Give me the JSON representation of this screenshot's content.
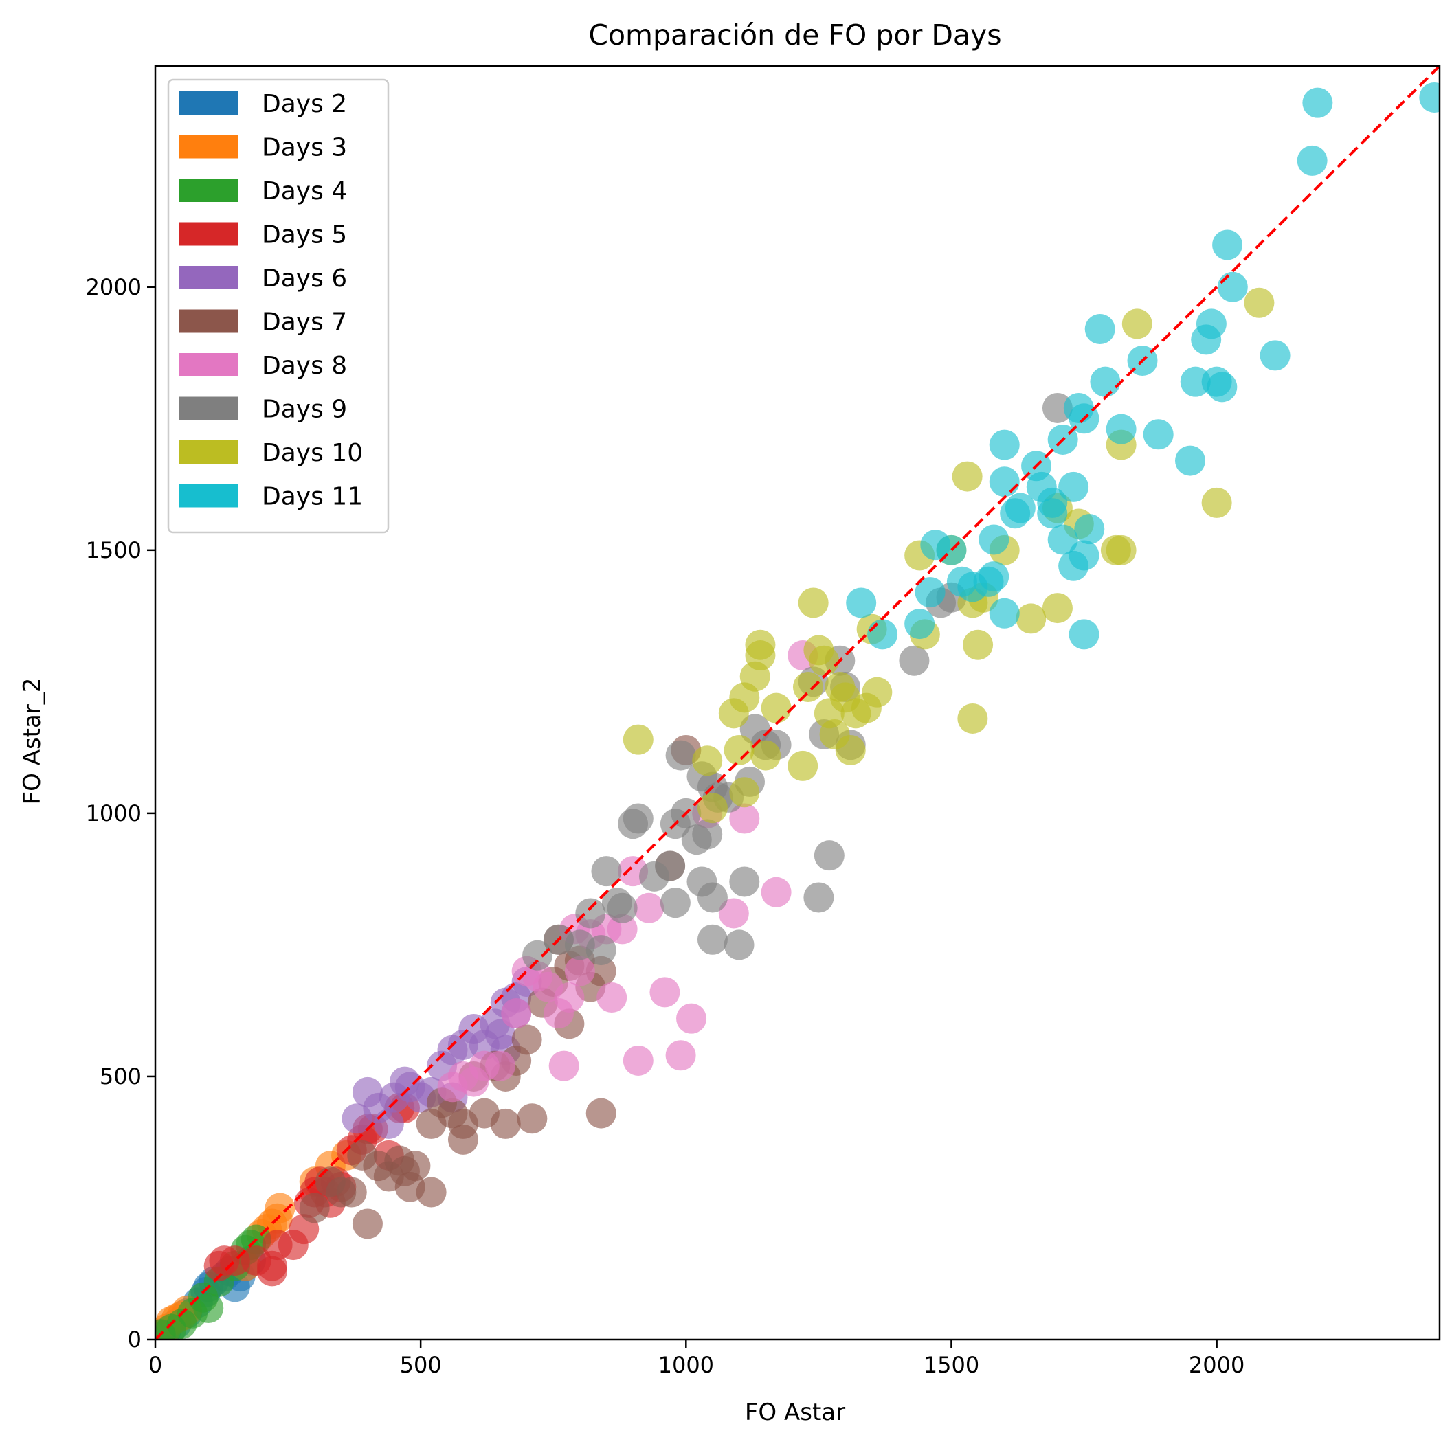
{
  "chart_data": {
    "type": "scatter",
    "title": "Comparación de FO por Days",
    "xlabel": "FO Astar",
    "ylabel": "FO Astar_2",
    "xlim": [
      0,
      2420
    ],
    "ylim": [
      0,
      2420
    ],
    "xticks": [
      0,
      500,
      1000,
      1500,
      2000
    ],
    "yticks": [
      0,
      500,
      1000,
      1500,
      2000
    ],
    "grid": false,
    "legend_position": "top-left",
    "reference_line": {
      "style": "dashed",
      "color": "#ff0000",
      "from": [
        0,
        0
      ],
      "to": [
        2420,
        2420
      ]
    },
    "series": [
      {
        "name": "Days 2",
        "color": "#1f77b4",
        "points": [
          [
            10,
            10
          ],
          [
            20,
            15
          ],
          [
            40,
            30
          ],
          [
            60,
            50
          ],
          [
            80,
            70
          ],
          [
            95,
            90
          ],
          [
            100,
            100
          ],
          [
            110,
            110
          ],
          [
            130,
            120
          ],
          [
            150,
            100
          ],
          [
            160,
            120
          ],
          [
            170,
            140
          ],
          [
            180,
            150
          ],
          [
            140,
            130
          ]
        ]
      },
      {
        "name": "Days 3",
        "color": "#ff7f0e",
        "points": [
          [
            20,
            20
          ],
          [
            30,
            35
          ],
          [
            40,
            40
          ],
          [
            50,
            45
          ],
          [
            60,
            55
          ],
          [
            170,
            140
          ],
          [
            200,
            200
          ],
          [
            210,
            210
          ],
          [
            220,
            220
          ],
          [
            230,
            230
          ],
          [
            235,
            250
          ],
          [
            300,
            300
          ],
          [
            330,
            330
          ],
          [
            360,
            350
          ]
        ]
      },
      {
        "name": "Days 4",
        "color": "#2ca02c",
        "points": [
          [
            10,
            10
          ],
          [
            30,
            20
          ],
          [
            50,
            30
          ],
          [
            70,
            50
          ],
          [
            90,
            80
          ],
          [
            100,
            60
          ],
          [
            120,
            110
          ],
          [
            150,
            140
          ],
          [
            170,
            170
          ],
          [
            180,
            180
          ],
          [
            190,
            190
          ]
        ]
      },
      {
        "name": "Days 5",
        "color": "#d62728",
        "points": [
          [
            120,
            140
          ],
          [
            130,
            150
          ],
          [
            150,
            150
          ],
          [
            190,
            150
          ],
          [
            220,
            130
          ],
          [
            220,
            140
          ],
          [
            230,
            180
          ],
          [
            260,
            180
          ],
          [
            280,
            210
          ],
          [
            290,
            260
          ],
          [
            300,
            280
          ],
          [
            310,
            300
          ],
          [
            320,
            280
          ],
          [
            330,
            260
          ],
          [
            340,
            300
          ],
          [
            350,
            290
          ],
          [
            370,
            360
          ],
          [
            390,
            380
          ],
          [
            400,
            400
          ],
          [
            440,
            350
          ],
          [
            460,
            440
          ],
          [
            470,
            440
          ],
          [
            410,
            400
          ]
        ]
      },
      {
        "name": "Days 6",
        "color": "#9467bd",
        "points": [
          [
            380,
            420
          ],
          [
            400,
            470
          ],
          [
            420,
            440
          ],
          [
            440,
            410
          ],
          [
            450,
            460
          ],
          [
            470,
            490
          ],
          [
            480,
            480
          ],
          [
            500,
            460
          ],
          [
            520,
            470
          ],
          [
            540,
            520
          ],
          [
            560,
            460
          ],
          [
            560,
            550
          ],
          [
            580,
            560
          ],
          [
            600,
            590
          ],
          [
            620,
            560
          ],
          [
            640,
            600
          ],
          [
            650,
            580
          ],
          [
            660,
            640
          ],
          [
            680,
            650
          ],
          [
            700,
            680
          ],
          [
            680,
            620
          ],
          [
            660,
            550
          ]
        ]
      },
      {
        "name": "Days 7",
        "color": "#8c564b",
        "points": [
          [
            300,
            250
          ],
          [
            330,
            300
          ],
          [
            350,
            280
          ],
          [
            370,
            280
          ],
          [
            390,
            350
          ],
          [
            400,
            220
          ],
          [
            420,
            330
          ],
          [
            440,
            310
          ],
          [
            460,
            340
          ],
          [
            470,
            320
          ],
          [
            480,
            290
          ],
          [
            490,
            330
          ],
          [
            520,
            410
          ],
          [
            520,
            280
          ],
          [
            540,
            450
          ],
          [
            560,
            430
          ],
          [
            580,
            410
          ],
          [
            580,
            380
          ],
          [
            600,
            500
          ],
          [
            620,
            430
          ],
          [
            640,
            520
          ],
          [
            660,
            410
          ],
          [
            660,
            500
          ],
          [
            680,
            530
          ],
          [
            700,
            570
          ],
          [
            710,
            420
          ],
          [
            730,
            640
          ],
          [
            750,
            680
          ],
          [
            760,
            760
          ],
          [
            780,
            710
          ],
          [
            780,
            600
          ],
          [
            800,
            720
          ],
          [
            820,
            670
          ],
          [
            840,
            430
          ],
          [
            840,
            700
          ],
          [
            970,
            900
          ],
          [
            1000,
            1120
          ]
        ]
      },
      {
        "name": "Days 8",
        "color": "#e377c2",
        "points": [
          [
            560,
            480
          ],
          [
            580,
            500
          ],
          [
            600,
            490
          ],
          [
            620,
            520
          ],
          [
            650,
            520
          ],
          [
            680,
            620
          ],
          [
            700,
            700
          ],
          [
            720,
            690
          ],
          [
            740,
            670
          ],
          [
            760,
            620
          ],
          [
            770,
            520
          ],
          [
            780,
            650
          ],
          [
            790,
            780
          ],
          [
            800,
            700
          ],
          [
            820,
            770
          ],
          [
            850,
            780
          ],
          [
            860,
            650
          ],
          [
            880,
            780
          ],
          [
            900,
            890
          ],
          [
            910,
            530
          ],
          [
            930,
            820
          ],
          [
            960,
            660
          ],
          [
            990,
            540
          ],
          [
            1010,
            610
          ],
          [
            1040,
            1000
          ],
          [
            1090,
            810
          ],
          [
            1110,
            990
          ],
          [
            1170,
            850
          ],
          [
            1220,
            1300
          ]
        ]
      },
      {
        "name": "Days 9",
        "color": "#7f7f7f",
        "points": [
          [
            720,
            730
          ],
          [
            760,
            760
          ],
          [
            800,
            750
          ],
          [
            820,
            810
          ],
          [
            840,
            740
          ],
          [
            850,
            890
          ],
          [
            870,
            830
          ],
          [
            880,
            820
          ],
          [
            900,
            980
          ],
          [
            910,
            990
          ],
          [
            940,
            880
          ],
          [
            970,
            900
          ],
          [
            980,
            830
          ],
          [
            980,
            980
          ],
          [
            990,
            1110
          ],
          [
            1000,
            1000
          ],
          [
            1020,
            950
          ],
          [
            1030,
            870
          ],
          [
            1030,
            1070
          ],
          [
            1040,
            960
          ],
          [
            1050,
            840
          ],
          [
            1050,
            760
          ],
          [
            1050,
            1050
          ],
          [
            1060,
            1030
          ],
          [
            1080,
            1030
          ],
          [
            1100,
            750
          ],
          [
            1110,
            870
          ],
          [
            1120,
            1060
          ],
          [
            1130,
            1160
          ],
          [
            1150,
            1130
          ],
          [
            1170,
            1130
          ],
          [
            1240,
            1250
          ],
          [
            1250,
            840
          ],
          [
            1260,
            1150
          ],
          [
            1270,
            920
          ],
          [
            1290,
            1290
          ],
          [
            1300,
            1240
          ],
          [
            1310,
            1130
          ],
          [
            1430,
            1290
          ],
          [
            1480,
            1400
          ],
          [
            1500,
            1410
          ],
          [
            1700,
            1770
          ]
        ]
      },
      {
        "name": "Days 10",
        "color": "#bcbd22",
        "points": [
          [
            910,
            1140
          ],
          [
            1040,
            1100
          ],
          [
            1050,
            1010
          ],
          [
            1090,
            1190
          ],
          [
            1100,
            1120
          ],
          [
            1110,
            1220
          ],
          [
            1110,
            1040
          ],
          [
            1130,
            1260
          ],
          [
            1140,
            1300
          ],
          [
            1140,
            1320
          ],
          [
            1150,
            1110
          ],
          [
            1170,
            1200
          ],
          [
            1220,
            1090
          ],
          [
            1230,
            1240
          ],
          [
            1240,
            1400
          ],
          [
            1250,
            1310
          ],
          [
            1260,
            1290
          ],
          [
            1270,
            1190
          ],
          [
            1280,
            1150
          ],
          [
            1290,
            1240
          ],
          [
            1300,
            1220
          ],
          [
            1310,
            1120
          ],
          [
            1320,
            1190
          ],
          [
            1340,
            1200
          ],
          [
            1350,
            1350
          ],
          [
            1360,
            1230
          ],
          [
            1440,
            1490
          ],
          [
            1450,
            1340
          ],
          [
            1500,
            1500
          ],
          [
            1530,
            1640
          ],
          [
            1540,
            1180
          ],
          [
            1540,
            1400
          ],
          [
            1550,
            1320
          ],
          [
            1560,
            1410
          ],
          [
            1600,
            1500
          ],
          [
            1650,
            1370
          ],
          [
            1700,
            1390
          ],
          [
            1700,
            1580
          ],
          [
            1740,
            1550
          ],
          [
            1810,
            1500
          ],
          [
            1820,
            1700
          ],
          [
            1820,
            1500
          ],
          [
            1850,
            1930
          ],
          [
            2000,
            1590
          ],
          [
            2080,
            1970
          ]
        ]
      },
      {
        "name": "Days 11",
        "color": "#17becf",
        "points": [
          [
            1330,
            1400
          ],
          [
            1370,
            1340
          ],
          [
            1440,
            1360
          ],
          [
            1460,
            1420
          ],
          [
            1470,
            1510
          ],
          [
            1500,
            1500
          ],
          [
            1520,
            1440
          ],
          [
            1540,
            1430
          ],
          [
            1570,
            1440
          ],
          [
            1580,
            1450
          ],
          [
            1580,
            1520
          ],
          [
            1600,
            1380
          ],
          [
            1600,
            1630
          ],
          [
            1600,
            1700
          ],
          [
            1620,
            1570
          ],
          [
            1630,
            1580
          ],
          [
            1660,
            1660
          ],
          [
            1670,
            1620
          ],
          [
            1690,
            1570
          ],
          [
            1690,
            1590
          ],
          [
            1710,
            1520
          ],
          [
            1710,
            1710
          ],
          [
            1730,
            1620
          ],
          [
            1730,
            1470
          ],
          [
            1740,
            1770
          ],
          [
            1750,
            1750
          ],
          [
            1750,
            1340
          ],
          [
            1750,
            1490
          ],
          [
            1760,
            1540
          ],
          [
            1780,
            1920
          ],
          [
            1790,
            1820
          ],
          [
            1820,
            1730
          ],
          [
            1860,
            1860
          ],
          [
            1890,
            1720
          ],
          [
            1950,
            1670
          ],
          [
            1960,
            1820
          ],
          [
            1980,
            1900
          ],
          [
            1990,
            1930
          ],
          [
            2000,
            1820
          ],
          [
            2010,
            1810
          ],
          [
            2020,
            2080
          ],
          [
            2030,
            2000
          ],
          [
            2110,
            1870
          ],
          [
            2180,
            2240
          ],
          [
            2190,
            2350
          ],
          [
            2410,
            2360
          ]
        ]
      }
    ]
  }
}
